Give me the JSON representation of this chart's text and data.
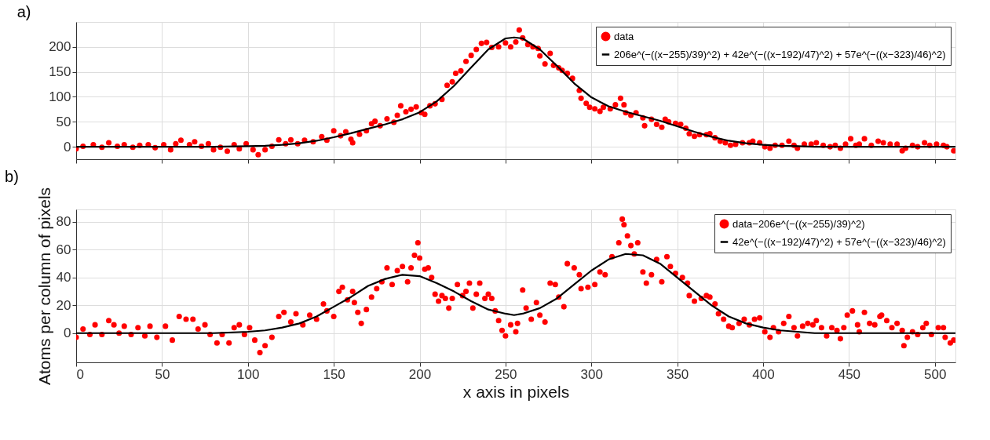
{
  "chart_data": [
    {
      "type": "scatter",
      "title": "a)",
      "xlim": [
        0,
        512
      ],
      "xticks": [
        0,
        50,
        100,
        150,
        200,
        250,
        300,
        350,
        400,
        450,
        500
      ],
      "ylim": [
        -25,
        250
      ],
      "yticks": [
        0,
        50,
        100,
        150,
        200
      ],
      "grid": true,
      "legend": "top right",
      "tick_labels": "y",
      "series": [
        {
          "name": "data",
          "marker": "circle",
          "color": "#ff0000",
          "x": [
            0,
            4,
            10,
            15,
            19,
            24,
            28,
            33,
            37,
            42,
            46,
            51,
            55,
            58,
            61,
            66,
            69,
            73,
            77,
            80,
            84,
            88,
            92,
            95,
            99,
            103,
            106,
            110,
            114,
            118,
            122,
            125,
            129,
            133,
            138,
            143,
            146,
            150,
            154,
            157,
            160,
            161,
            165,
            169,
            172,
            174,
            177,
            181,
            185,
            187,
            189,
            192,
            195,
            198,
            201,
            203,
            206,
            209,
            213,
            216,
            219,
            221,
            224,
            227,
            230,
            233,
            236,
            239,
            242,
            246,
            250,
            253,
            256,
            258,
            260,
            263,
            266,
            269,
            270,
            273,
            276,
            278,
            281,
            283,
            286,
            289,
            293,
            294,
            297,
            299,
            302,
            305,
            307,
            311,
            314,
            317,
            319,
            320,
            323,
            326,
            330,
            331,
            335,
            338,
            341,
            343,
            345,
            349,
            352,
            355,
            357,
            360,
            363,
            367,
            369,
            372,
            375,
            378,
            381,
            384,
            388,
            392,
            394,
            398,
            401,
            404,
            407,
            411,
            415,
            418,
            420,
            424,
            428,
            431,
            435,
            439,
            442,
            445,
            448,
            451,
            454,
            456,
            459,
            463,
            467,
            470,
            474,
            478,
            481,
            483,
            487,
            490,
            494,
            497,
            501,
            505,
            507,
            511
          ],
          "values": [
            -4,
            1,
            4,
            -1,
            8,
            1,
            4,
            -1,
            3,
            4,
            -2,
            4,
            -6,
            6,
            13,
            4,
            10,
            1,
            6,
            -6,
            -1,
            -9,
            4,
            -4,
            6,
            -6,
            -16,
            -6,
            1,
            14,
            6,
            14,
            6,
            13,
            10,
            20,
            13,
            32,
            22,
            30,
            15,
            8,
            25,
            32,
            46,
            51,
            42,
            56,
            49,
            63,
            82,
            70,
            75,
            80,
            68,
            65,
            82,
            86,
            95,
            123,
            130,
            147,
            152,
            171,
            183,
            195,
            207,
            209,
            199,
            200,
            208,
            200,
            210,
            234,
            218,
            205,
            200,
            197,
            182,
            166,
            187,
            163,
            158,
            153,
            147,
            137,
            113,
            97,
            87,
            79,
            76,
            71,
            79,
            76,
            84,
            97,
            84,
            68,
            63,
            68,
            58,
            42,
            55,
            45,
            39,
            55,
            50,
            47,
            45,
            37,
            26,
            21,
            24,
            24,
            26,
            18,
            11,
            8,
            3,
            5,
            8,
            8,
            11,
            8,
            0,
            -3,
            3,
            3,
            11,
            3,
            -3,
            5,
            5,
            8,
            3,
            0,
            3,
            -3,
            5,
            16,
            3,
            5,
            16,
            3,
            11,
            8,
            5,
            5,
            -8,
            -3,
            3,
            0,
            8,
            3,
            5,
            3,
            0,
            -8
          ]
        },
        {
          "name": "206e^(−((x−255)/39)^2) + 42e^(−((x−192)/47)^2) + 57e^(−((x−323)/46)^2)",
          "type": "line",
          "marker": "none",
          "line_style": "solid",
          "color": "#000000",
          "x": [
            0,
            50,
            80,
            100,
            110,
            120,
            130,
            140,
            150,
            160,
            170,
            180,
            190,
            200,
            210,
            220,
            230,
            240,
            250,
            255,
            260,
            270,
            280,
            290,
            300,
            310,
            320,
            330,
            340,
            350,
            360,
            370,
            380,
            390,
            400,
            410,
            420,
            430,
            450,
            480,
            512
          ],
          "values": [
            0,
            0,
            0,
            1,
            2,
            4,
            7,
            12,
            19,
            27,
            36,
            45,
            55,
            69,
            91,
            122,
            159,
            195,
            217,
            219,
            217,
            195,
            162,
            127,
            99,
            81,
            70,
            61,
            52,
            41,
            30,
            20,
            12,
            7,
            4,
            2,
            1,
            0,
            0,
            0,
            0
          ]
        }
      ]
    },
    {
      "type": "scatter",
      "title": "b)",
      "xlabel": "x axis in pixels",
      "ylabel": "Atoms per column of pixels",
      "xlim": [
        0,
        512
      ],
      "xticks": [
        0,
        50,
        100,
        150,
        200,
        250,
        300,
        350,
        400,
        450,
        500
      ],
      "ylim": [
        -21,
        89
      ],
      "yticks": [
        0,
        20,
        40,
        60,
        80
      ],
      "grid": true,
      "legend": "top right",
      "series": [
        {
          "name": "data−206e^(−((x−255)/39)^2)",
          "marker": "circle",
          "color": "#ff0000",
          "x": [
            0,
            4,
            8,
            11,
            15,
            19,
            22,
            25,
            28,
            32,
            36,
            40,
            43,
            47,
            52,
            56,
            60,
            64,
            68,
            71,
            75,
            78,
            82,
            85,
            89,
            92,
            95,
            98,
            101,
            104,
            107,
            110,
            114,
            118,
            121,
            125,
            128,
            132,
            136,
            140,
            144,
            146,
            150,
            153,
            155,
            158,
            161,
            162,
            164,
            166,
            169,
            172,
            175,
            178,
            181,
            184,
            187,
            190,
            193,
            195,
            197,
            199,
            200,
            203,
            205,
            207,
            209,
            211,
            213,
            215,
            217,
            219,
            222,
            225,
            227,
            229,
            231,
            233,
            235,
            238,
            240,
            242,
            244,
            246,
            248,
            250,
            253,
            256,
            257,
            260,
            262,
            265,
            268,
            270,
            273,
            276,
            279,
            281,
            284,
            286,
            290,
            293,
            294,
            298,
            302,
            305,
            308,
            312,
            316,
            318,
            319,
            321,
            323,
            325,
            327,
            330,
            332,
            335,
            338,
            341,
            344,
            346,
            349,
            353,
            356,
            357,
            360,
            364,
            367,
            369,
            372,
            374,
            377,
            380,
            382,
            386,
            389,
            392,
            395,
            398,
            401,
            404,
            406,
            409,
            412,
            415,
            418,
            420,
            423,
            426,
            429,
            431,
            434,
            437,
            440,
            443,
            445,
            447,
            449,
            452,
            455,
            456,
            459,
            462,
            465,
            468,
            469,
            472,
            475,
            478,
            481,
            482,
            484,
            487,
            490,
            493,
            495,
            498,
            502,
            505,
            506,
            509,
            511
          ],
          "values": [
            -3,
            3,
            -1,
            6,
            -1,
            9,
            6,
            0,
            5,
            -1,
            4,
            -2,
            5,
            -3,
            5,
            -5,
            12,
            10,
            10,
            3,
            6,
            -1,
            -7,
            -1,
            -7,
            4,
            6,
            -1,
            4,
            -5,
            -14,
            -9,
            -3,
            12,
            15,
            8,
            14,
            6,
            13,
            10,
            21,
            16,
            12,
            30,
            33,
            24,
            30,
            22,
            15,
            7,
            17,
            26,
            32,
            37,
            47,
            35,
            45,
            48,
            37,
            47,
            56,
            65,
            54,
            46,
            47,
            40,
            28,
            23,
            27,
            25,
            18,
            25,
            35,
            27,
            30,
            36,
            18,
            28,
            36,
            25,
            28,
            25,
            16,
            9,
            2,
            -2,
            6,
            1,
            7,
            31,
            18,
            10,
            22,
            13,
            8,
            36,
            35,
            26,
            19,
            50,
            47,
            42,
            32,
            33,
            35,
            44,
            42,
            55,
            65,
            82,
            78,
            70,
            63,
            57,
            65,
            44,
            36,
            42,
            53,
            37,
            55,
            48,
            43,
            40,
            36,
            27,
            23,
            25,
            27,
            26,
            21,
            14,
            10,
            5,
            4,
            7,
            10,
            6,
            10,
            11,
            1,
            -3,
            4,
            1,
            7,
            12,
            4,
            -2,
            5,
            7,
            6,
            9,
            4,
            -2,
            4,
            2,
            -4,
            4,
            13,
            16,
            6,
            1,
            15,
            7,
            6,
            12,
            13,
            9,
            4,
            7,
            2,
            -9,
            -3,
            1,
            -1,
            4,
            7,
            -1,
            4,
            4,
            -3,
            -7,
            -5
          ]
        },
        {
          "name": "42e^(−((x−192)/47)^2) + 57e^(−((x−323)/46)^2)",
          "type": "line",
          "marker": "none",
          "line_style": "solid",
          "color": "#000000",
          "x": [
            0,
            50,
            80,
            100,
            110,
            120,
            130,
            140,
            150,
            160,
            170,
            180,
            190,
            200,
            210,
            220,
            230,
            240,
            250,
            255,
            260,
            270,
            280,
            290,
            300,
            310,
            320,
            330,
            340,
            350,
            360,
            370,
            380,
            390,
            400,
            410,
            420,
            430,
            450,
            480,
            512
          ],
          "values": [
            0,
            0,
            0,
            1,
            2,
            4,
            7,
            12,
            19,
            26,
            34,
            39,
            42,
            41,
            36,
            30,
            23,
            17,
            14,
            13,
            14,
            18,
            25,
            35,
            45,
            53,
            57,
            56,
            50,
            40,
            30,
            20,
            12,
            7,
            4,
            2,
            1,
            0,
            0,
            0,
            0
          ]
        }
      ]
    }
  ]
}
